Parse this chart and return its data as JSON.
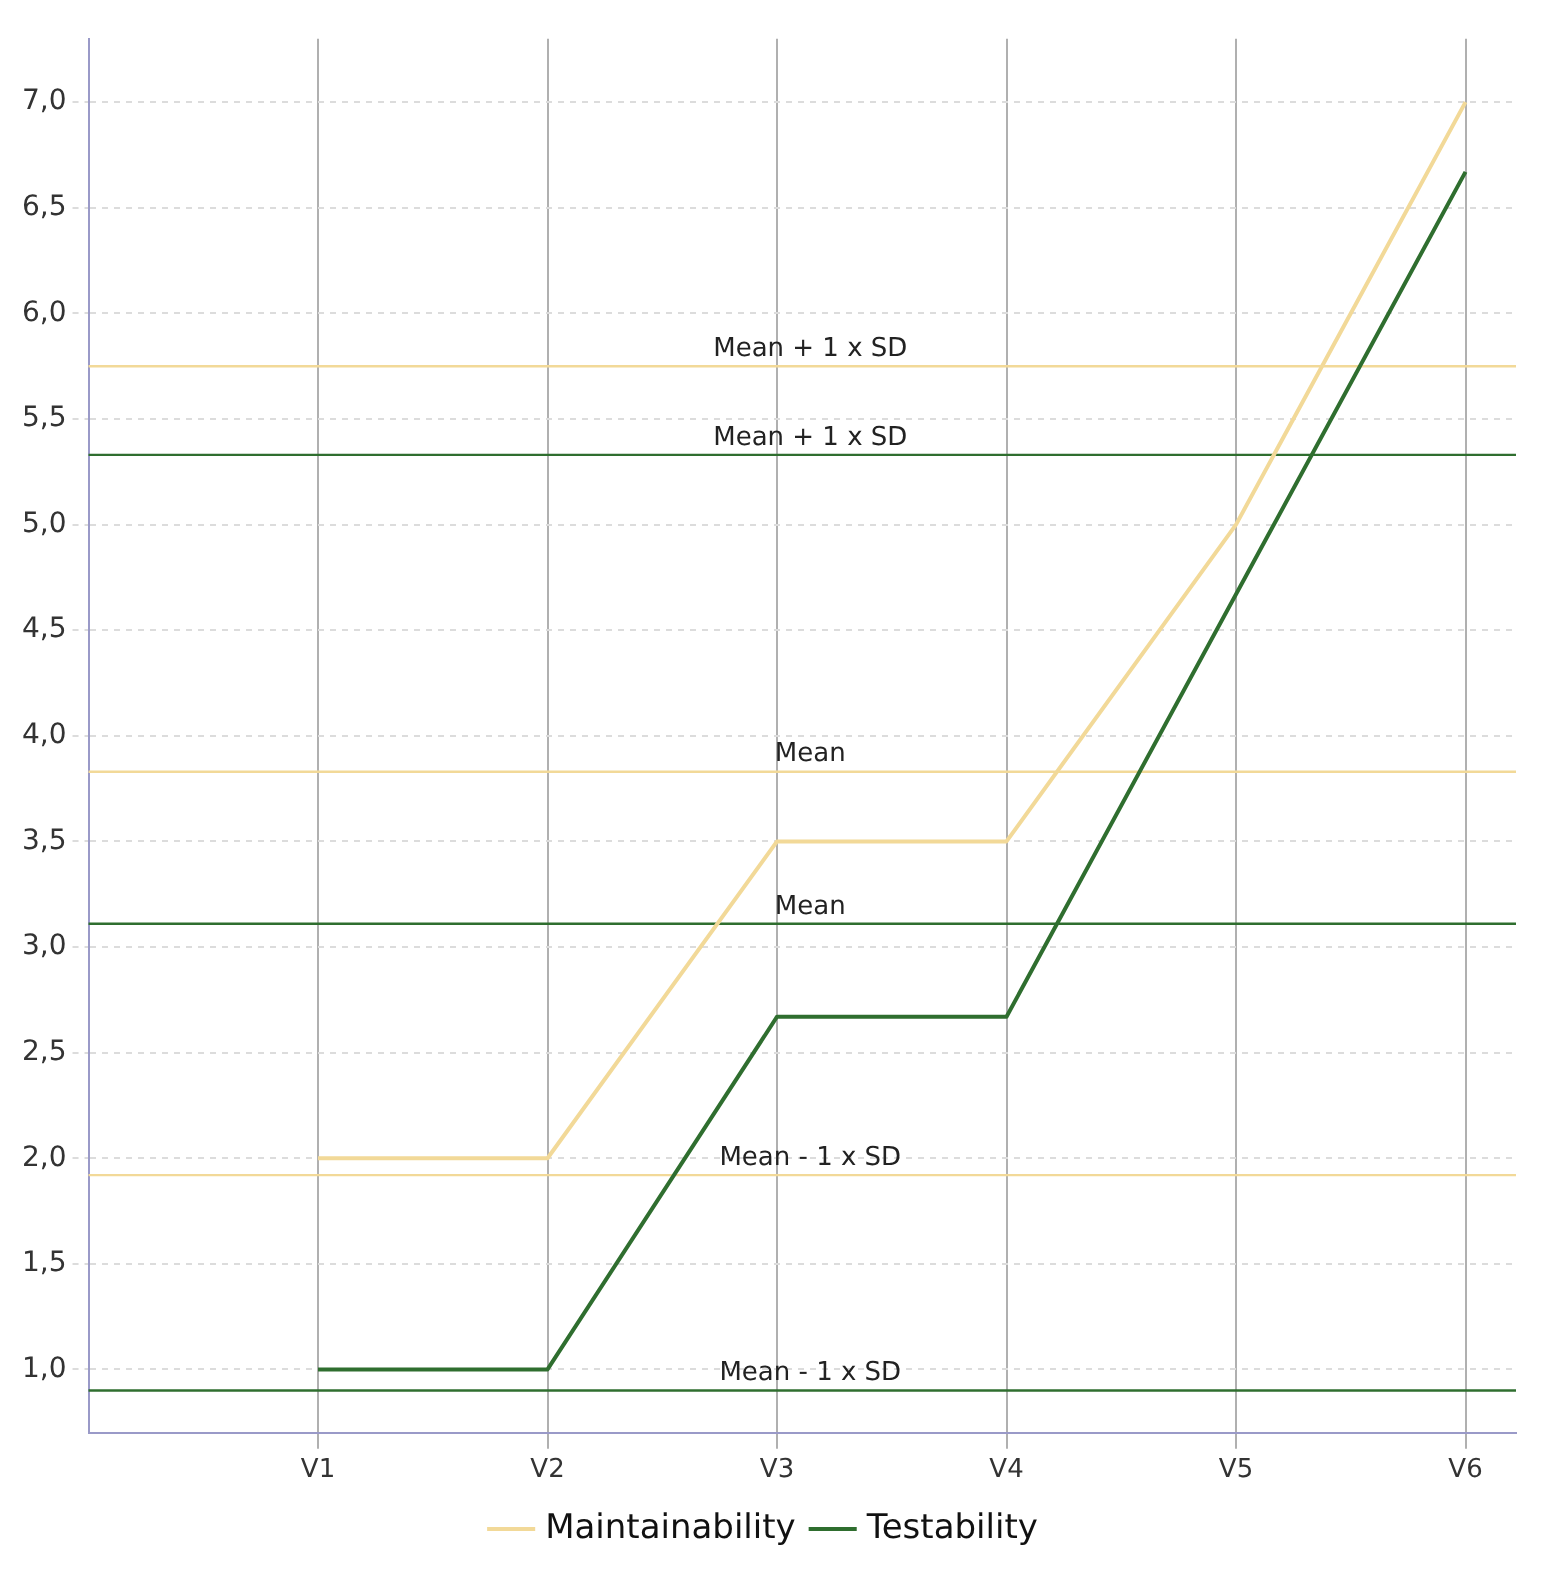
{
  "chart_data": {
    "type": "line",
    "categories": [
      "V1",
      "V2",
      "V3",
      "V4",
      "V5",
      "V6"
    ],
    "series": [
      {
        "name": "Maintainability",
        "color": "#f2d998",
        "values": [
          2.0,
          2.0,
          3.5,
          3.5,
          5.0,
          7.0
        ]
      },
      {
        "name": "Testability",
        "color": "#2f6e2f",
        "values": [
          1.0,
          1.0,
          2.67,
          2.67,
          4.67,
          6.67
        ]
      }
    ],
    "ylim": [
      0.7,
      7.3
    ],
    "yticks": [
      {
        "value": 1,
        "label": "1,0"
      },
      {
        "value": 1.5,
        "label": "1,5"
      },
      {
        "value": 2,
        "label": "2,0"
      },
      {
        "value": 2.5,
        "label": "2,5"
      },
      {
        "value": 3,
        "label": "3,0"
      },
      {
        "value": 3.5,
        "label": "3,5"
      },
      {
        "value": 4,
        "label": "4,0"
      },
      {
        "value": 4.5,
        "label": "4,5"
      },
      {
        "value": 5,
        "label": "5,0"
      },
      {
        "value": 5.5,
        "label": "5,5"
      },
      {
        "value": 6,
        "label": "6,0"
      },
      {
        "value": 6.5,
        "label": "6,5"
      },
      {
        "value": 7,
        "label": "7,0"
      }
    ],
    "ref_lines": [
      {
        "axis": "y",
        "value": 5.75,
        "label": "Mean + 1 x SD",
        "color": "#f2d998"
      },
      {
        "axis": "y",
        "value": 5.33,
        "label": "Mean + 1 x SD",
        "color": "#2f6e2f"
      },
      {
        "axis": "y",
        "value": 3.83,
        "label": "Mean",
        "color": "#f2d998"
      },
      {
        "axis": "y",
        "value": 3.11,
        "label": "Mean",
        "color": "#2f6e2f"
      },
      {
        "axis": "y",
        "value": 1.92,
        "label": "Mean - 1 x SD",
        "color": "#f2d998"
      },
      {
        "axis": "y",
        "value": 0.9,
        "label": "Mean - 1 x SD",
        "color": "#2f6e2f"
      }
    ],
    "grid": true,
    "legend": "bottom",
    "marker": "none",
    "line_style": "solid"
  }
}
